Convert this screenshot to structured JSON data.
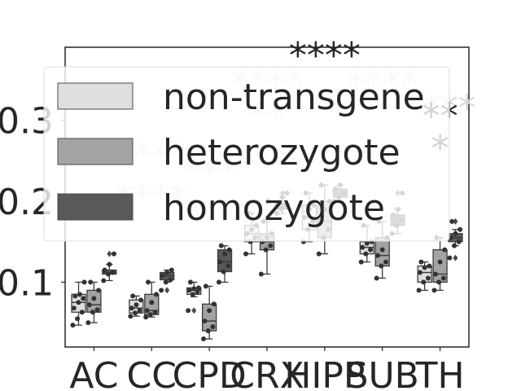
{
  "chart_data": {
    "type": "box",
    "categories": [
      "AC",
      "CC",
      "CPD",
      "CRX",
      "HIPP",
      "SUB",
      "TH"
    ],
    "ylim": [
      0.02,
      0.39
    ],
    "yticks": [
      {
        "value": 0.1,
        "label": "0.1"
      },
      {
        "value": 0.2,
        "label": "0.2"
      },
      {
        "value": 0.3,
        "label": "0.3"
      }
    ],
    "grid": false,
    "legend_position": "upper-center",
    "series": [
      {
        "name": "non-transgene",
        "color": "#dedede",
        "boxes": [
          {
            "q1": 0.063,
            "median": 0.075,
            "q3": 0.085,
            "whislo": 0.047,
            "whishi": 0.1,
            "points": [
              0.047,
              0.055,
              0.063,
              0.068,
              0.075,
              0.08,
              0.083,
              0.085,
              0.1
            ]
          },
          {
            "q1": 0.062,
            "median": 0.068,
            "q3": 0.078,
            "whislo": 0.058,
            "whishi": 0.083,
            "points": [
              0.058,
              0.062,
              0.065,
              0.068,
              0.072,
              0.078,
              0.083
            ]
          },
          {
            "q1": 0.085,
            "median": 0.09,
            "q3": 0.093,
            "whislo": 0.082,
            "whishi": 0.1,
            "outliers": [
              0.065
            ],
            "points": [
              0.065,
              0.085,
              0.088,
              0.09,
              0.092,
              0.093,
              0.1
            ]
          },
          {
            "q1": 0.15,
            "median": 0.16,
            "q3": 0.17,
            "whislo": 0.135,
            "whishi": 0.185,
            "points": [
              0.135,
              0.15,
              0.155,
              0.16,
              0.165,
              0.17,
              0.185
            ]
          },
          {
            "q1": 0.165,
            "median": 0.18,
            "q3": 0.195,
            "whislo": 0.15,
            "whishi": 0.21,
            "points": [
              0.15,
              0.165,
              0.175,
              0.18,
              0.19,
              0.195,
              0.21
            ]
          },
          {
            "q1": 0.135,
            "median": 0.143,
            "q3": 0.15,
            "whislo": 0.125,
            "whishi": 0.17,
            "points": [
              0.125,
              0.135,
              0.14,
              0.143,
              0.148,
              0.15,
              0.17
            ]
          },
          {
            "q1": 0.1,
            "median": 0.112,
            "q3": 0.12,
            "whislo": 0.09,
            "whishi": 0.125,
            "points": [
              0.09,
              0.1,
              0.105,
              0.112,
              0.118,
              0.12,
              0.125
            ]
          }
        ]
      },
      {
        "name": "heterozygote",
        "color": "#a3a3a3",
        "boxes": [
          {
            "q1": 0.063,
            "median": 0.072,
            "q3": 0.09,
            "whislo": 0.05,
            "whishi": 0.1,
            "points": [
              0.05,
              0.063,
              0.066,
              0.072,
              0.08,
              0.09,
              0.1
            ]
          },
          {
            "q1": 0.06,
            "median": 0.065,
            "q3": 0.085,
            "whislo": 0.057,
            "whishi": 0.1,
            "points": [
              0.057,
              0.06,
              0.063,
              0.065,
              0.075,
              0.085,
              0.1
            ]
          },
          {
            "q1": 0.04,
            "median": 0.052,
            "q3": 0.073,
            "whislo": 0.03,
            "whishi": 0.095,
            "points": [
              0.03,
              0.04,
              0.045,
              0.052,
              0.065,
              0.073,
              0.095
            ]
          },
          {
            "q1": 0.14,
            "median": 0.15,
            "q3": 0.16,
            "whislo": 0.11,
            "whishi": 0.175,
            "outliers": [
              0.2
            ],
            "points": [
              0.11,
              0.14,
              0.145,
              0.15,
              0.155,
              0.16,
              0.175,
              0.2
            ]
          },
          {
            "q1": 0.155,
            "median": 0.175,
            "q3": 0.2,
            "whislo": 0.135,
            "whishi": 0.22,
            "points": [
              0.135,
              0.155,
              0.165,
              0.175,
              0.19,
              0.2,
              0.22
            ]
          },
          {
            "q1": 0.12,
            "median": 0.133,
            "q3": 0.155,
            "whislo": 0.105,
            "whishi": 0.175,
            "points": [
              0.105,
              0.12,
              0.125,
              0.133,
              0.14,
              0.155,
              0.175
            ]
          },
          {
            "q1": 0.1,
            "median": 0.11,
            "q3": 0.14,
            "whislo": 0.09,
            "whishi": 0.155,
            "points": [
              0.09,
              0.1,
              0.105,
              0.11,
              0.125,
              0.14,
              0.155
            ]
          }
        ]
      },
      {
        "name": "homozygote",
        "color": "#595959",
        "boxes": [
          {
            "q1": 0.11,
            "median": 0.112,
            "q3": 0.115,
            "whislo": 0.102,
            "whishi": 0.122,
            "outliers": [
              0.135
            ],
            "points": [
              0.102,
              0.11,
              0.112,
              0.115,
              0.122,
              0.135
            ]
          },
          {
            "q1": 0.103,
            "median": 0.108,
            "q3": 0.112,
            "whislo": 0.1,
            "whishi": 0.115,
            "outliers": [
              0.09
            ],
            "points": [
              0.09,
              0.1,
              0.103,
              0.108,
              0.112,
              0.115
            ]
          },
          {
            "q1": 0.113,
            "median": 0.125,
            "q3": 0.14,
            "whislo": 0.1,
            "whishi": 0.145,
            "points": [
              0.1,
              0.113,
              0.12,
              0.125,
              0.135,
              0.14,
              0.145
            ]
          },
          {
            "q1": 0.19,
            "median": 0.193,
            "q3": 0.197,
            "whislo": 0.185,
            "whishi": 0.205,
            "outliers": [
              0.21
            ],
            "points": [
              0.185,
              0.19,
              0.193,
              0.197,
              0.205,
              0.21
            ]
          },
          {
            "q1": 0.205,
            "median": 0.21,
            "q3": 0.215,
            "whislo": 0.2,
            "whishi": 0.22,
            "points": [
              0.2,
              0.205,
              0.21,
              0.215,
              0.22
            ]
          },
          {
            "q1": 0.17,
            "median": 0.176,
            "q3": 0.183,
            "whislo": 0.16,
            "whishi": 0.19,
            "outliers": [
              0.21
            ],
            "points": [
              0.16,
              0.17,
              0.176,
              0.183,
              0.19,
              0.21
            ]
          },
          {
            "q1": 0.15,
            "median": 0.155,
            "q3": 0.16,
            "whislo": 0.145,
            "whishi": 0.165,
            "outliers": [
              0.175,
              0.13
            ],
            "points": [
              0.13,
              0.145,
              0.15,
              0.155,
              0.16,
              0.165,
              0.175
            ]
          }
        ]
      }
    ],
    "annotations": [
      {
        "text": "****",
        "category": "HIPP",
        "y": 0.365,
        "color": "#262626"
      },
      {
        "text": "****",
        "category": "CRX",
        "y": 0.33,
        "color": "#dadada"
      },
      {
        "text": "****",
        "category": "SUB",
        "y": 0.33,
        "color": "#dadada"
      },
      {
        "text": "**",
        "category": "CRX",
        "y": 0.29,
        "color": "#dadada"
      },
      {
        "text": "****",
        "category": "TH",
        "y": 0.3,
        "color": "#dadada"
      },
      {
        "text": "**",
        "category": "TH",
        "y": 0.29,
        "color": "#262626"
      },
      {
        "text": "*",
        "category": "TH",
        "y": 0.25,
        "color": "#262626"
      },
      {
        "text": "****",
        "category": "CC",
        "y": 0.24,
        "color": "#dadada"
      },
      {
        "text": "***",
        "category": "CPD",
        "y": 0.22,
        "color": "#dadada"
      },
      {
        "text": "****",
        "category": "CC",
        "y": 0.19,
        "color": "#dadada"
      }
    ]
  }
}
